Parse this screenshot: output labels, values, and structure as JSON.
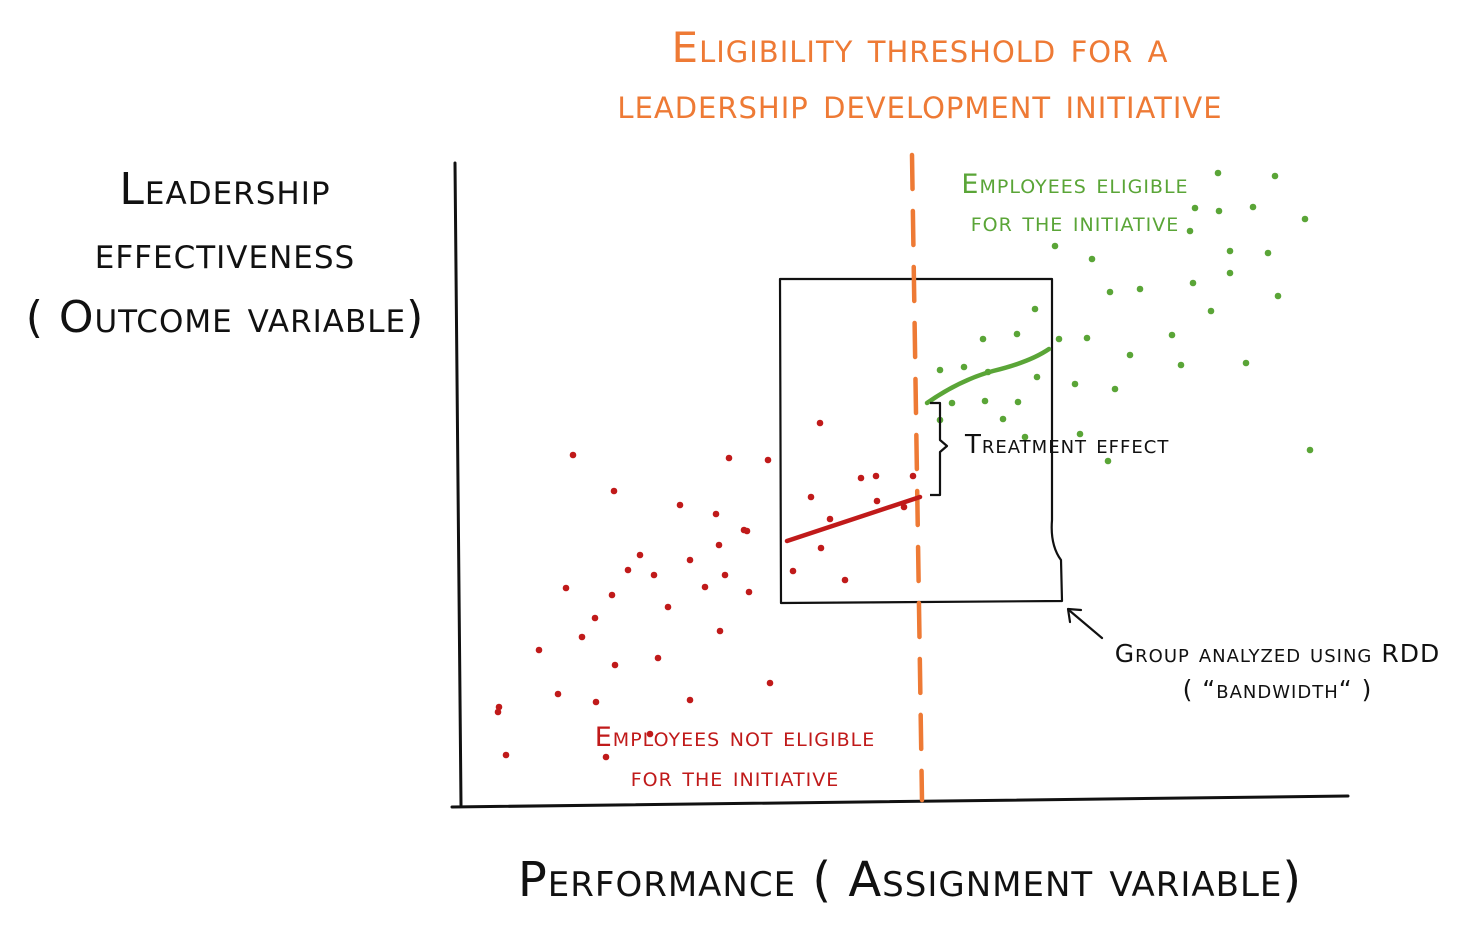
{
  "threshold_title": {
    "line1": "Eligibility threshold for a",
    "line2": "leadership development initiative"
  },
  "y_axis_title": {
    "line1": "Leadership",
    "line2": "effectiveness",
    "line3": "( Outcome variable)"
  },
  "x_axis_title": "Performance ( Assignment variable)",
  "eligible_label": {
    "line1": "Employees eligible",
    "line2": "for the initiative"
  },
  "not_eligible_label": {
    "line1": "Employees not eligible",
    "line2": "for the initiative"
  },
  "treatment_effect_label": "Treatment effect",
  "bandwidth_label": {
    "line1": "Group analyzed using RDD",
    "line2": "( “bandwidth“ )"
  },
  "colors": {
    "threshold": "#ee7a35",
    "eligible": "#5aa537",
    "not_eligible": "#c01a1a",
    "ink": "#111111"
  }
}
